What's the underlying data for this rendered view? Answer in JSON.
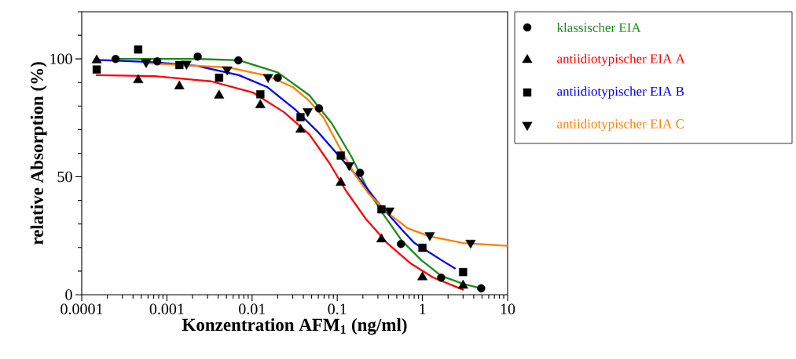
{
  "chart_data": {
    "type": "scatter",
    "xlabel": "Konzentration AFM$_{1}$ (ng/ml)",
    "ylabel": "relative Absorption (%)",
    "log": "x",
    "xlim": [
      0.0001,
      10
    ],
    "ylim": [
      0,
      120
    ],
    "xticks": [
      0.0001,
      0.001,
      0.01,
      0.1,
      1,
      10
    ],
    "yticks": [
      0,
      {
        "value": 10,
        "label": null
      },
      {
        "value": 20,
        "label": null
      },
      {
        "value": 30,
        "label": null
      },
      {
        "value": 40,
        "label": null
      },
      50,
      {
        "value": 60,
        "label": null
      },
      {
        "value": 70,
        "label": null
      },
      {
        "value": 80,
        "label": null
      },
      {
        "value": 90,
        "label": null
      },
      100,
      {
        "value": 110,
        "label": null
      },
      {
        "value": 120,
        "label": null
      }
    ],
    "legend": "right",
    "line_style": "solid",
    "series": [
      {
        "type": "line",
        "color": "#1b8c1b",
        "x": [
          0.00025,
          0.0023,
          0.007,
          0.02,
          0.047,
          0.086,
          0.147,
          0.231,
          0.337,
          0.574,
          0.975,
          1.66,
          3.05,
          4.91
        ],
        "values": [
          100,
          100,
          99.4,
          94.3,
          84.6,
          72.7,
          58.5,
          44.2,
          34.8,
          22.9,
          14.6,
          8.0,
          4.5,
          2.7
        ]
      },
      {
        "type": "line",
        "color": "#ff0000",
        "x": [
          0.00015,
          0.00072,
          0.0033,
          0.0103,
          0.0237,
          0.047,
          0.08,
          0.126,
          0.214,
          0.39,
          0.72,
          1.32,
          3.0
        ],
        "values": [
          93.1,
          92.7,
          90.5,
          85.7,
          77.4,
          68.0,
          56.1,
          44.2,
          32.4,
          21.7,
          13.4,
          7.4,
          2.1
        ]
      },
      {
        "type": "line",
        "color": "#0000ff",
        "x": [
          0.00015,
          0.00072,
          0.0023,
          0.007,
          0.015,
          0.032,
          0.059,
          0.1,
          0.184,
          0.313,
          0.574,
          0.8,
          1.79,
          2.4
        ],
        "values": [
          99.6,
          98.6,
          97.0,
          93.1,
          88.1,
          78.6,
          69.1,
          59.7,
          49.0,
          38.3,
          27.6,
          22.0,
          14.0,
          11.2
        ]
      },
      {
        "type": "line",
        "color": "#ff7f00",
        "x": [
          0.00057,
          0.0052,
          0.015,
          0.03,
          0.047,
          0.069,
          0.108,
          0.158,
          0.231,
          0.39,
          0.67,
          1.22,
          3.05,
          9.9
        ],
        "values": [
          98.2,
          96.4,
          92.9,
          88.1,
          82.2,
          75.1,
          62.0,
          51.4,
          43.1,
          34.8,
          28.2,
          24.7,
          21.9,
          20.7
        ]
      },
      {
        "name": "klassischer EIA",
        "color": "#000000",
        "marker": "circle",
        "x": [
          0.00025,
          0.00077,
          0.0023,
          0.0069,
          0.02,
          0.061,
          0.185,
          0.56,
          1.66,
          4.9
        ],
        "values": [
          100,
          99,
          101,
          99.4,
          92,
          79,
          51.7,
          21.5,
          7.2,
          2.7
        ]
      },
      {
        "name": "antiidiotypischer EIA A",
        "color": "#000000",
        "marker": "triangle",
        "x": [
          0.00015,
          0.00046,
          0.0014,
          0.0041,
          0.0125,
          0.037,
          0.11,
          0.33,
          1.0,
          3.0
        ],
        "values": [
          99.4,
          91,
          88.4,
          84.5,
          80.4,
          70,
          47.5,
          23.5,
          7.4,
          3.9
        ]
      },
      {
        "name": "antiidiotypischer EIA B",
        "color": "#000000",
        "marker": "square",
        "x": [
          0.00015,
          0.00046,
          0.0014,
          0.0041,
          0.0125,
          0.037,
          0.11,
          0.33,
          1.0,
          3.0
        ],
        "values": [
          95.5,
          104,
          97.4,
          92,
          85,
          75.3,
          59,
          36.2,
          19.9,
          9.6
        ]
      },
      {
        "name": "antiidiotypischer EIA C",
        "color": "#000000",
        "marker": "triangle-down",
        "x": [
          0.00057,
          0.0017,
          0.0051,
          0.0154,
          0.045,
          0.138,
          0.41,
          1.22,
          3.68
        ],
        "values": [
          98.6,
          97.9,
          95.5,
          92.3,
          77.8,
          54.9,
          35.7,
          25.2,
          22
        ]
      }
    ]
  }
}
